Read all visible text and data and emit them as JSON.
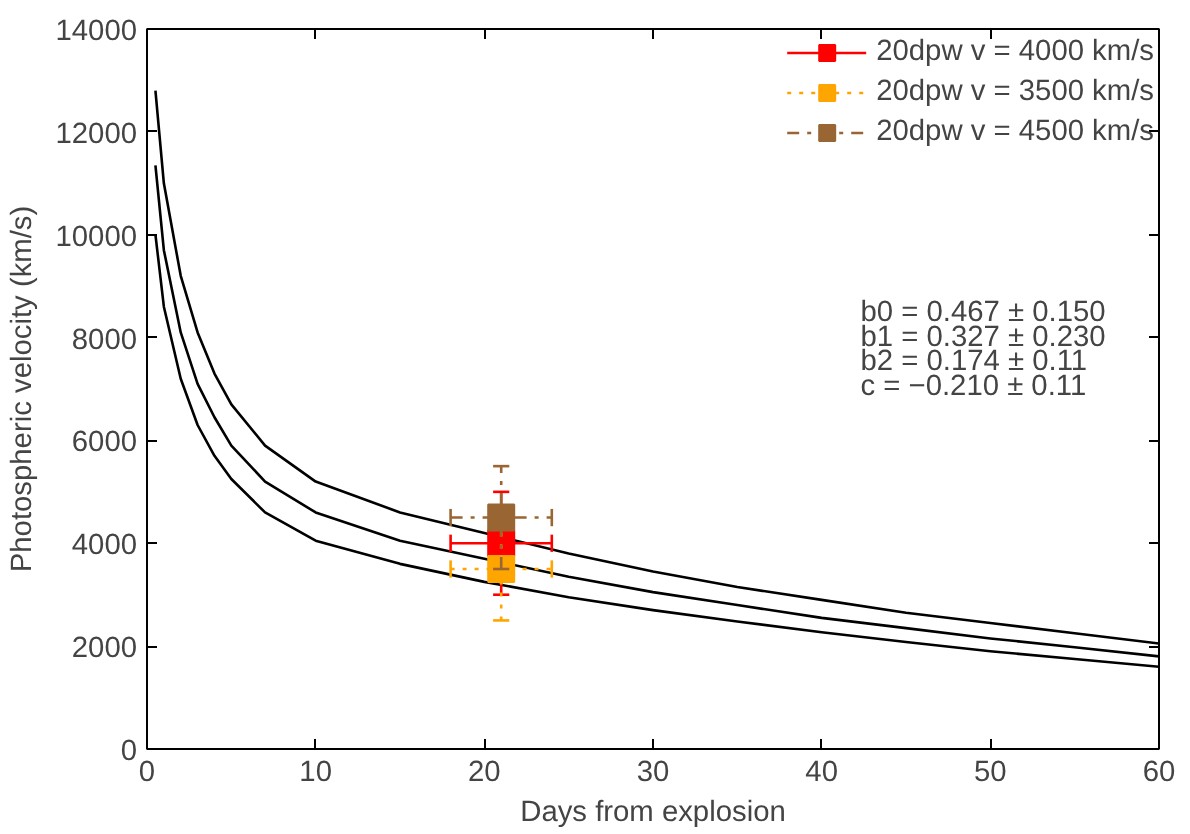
{
  "chart_data": {
    "type": "scatter",
    "xlabel": "Days from explosion",
    "ylabel": "Photospheric velocity (km/s)",
    "xlim": [
      0,
      60
    ],
    "ylim": [
      0,
      14000
    ],
    "xticks": [
      0,
      10,
      20,
      30,
      40,
      50,
      60
    ],
    "yticks": [
      0,
      2000,
      4000,
      6000,
      8000,
      10000,
      12000,
      14000
    ],
    "grid": false,
    "legend": "top right",
    "annotations": [
      "b0 = 0.467 ± 0.150",
      "b1 = 0.327 ± 0.230",
      "b2 = 0.174 ± 0.11",
      "c = −0.210 ± 0.11"
    ],
    "series": [
      {
        "type": "line",
        "color": "#000000",
        "x": [
          0.5,
          1,
          2,
          3,
          4,
          5,
          7,
          10,
          15,
          20,
          25,
          30,
          35,
          40,
          45,
          50,
          55,
          60
        ],
        "values": [
          12800,
          11000,
          9200,
          8100,
          7300,
          6700,
          5900,
          5200,
          4600,
          4200,
          3800,
          3450,
          3150,
          2900,
          2650,
          2450,
          2250,
          2050
        ]
      },
      {
        "type": "line",
        "color": "#000000",
        "x": [
          0.5,
          1,
          2,
          3,
          4,
          5,
          7,
          10,
          15,
          20,
          25,
          30,
          35,
          40,
          45,
          50,
          55,
          60
        ],
        "values": [
          11350,
          9700,
          8100,
          7100,
          6450,
          5900,
          5200,
          4600,
          4050,
          3700,
          3350,
          3050,
          2800,
          2550,
          2350,
          2150,
          1980,
          1800
        ]
      },
      {
        "type": "line",
        "color": "#000000",
        "x": [
          0.5,
          1,
          2,
          3,
          4,
          5,
          7,
          10,
          15,
          20,
          25,
          30,
          35,
          40,
          45,
          50,
          55,
          60
        ],
        "values": [
          10000,
          8600,
          7200,
          6300,
          5700,
          5250,
          4600,
          4050,
          3600,
          3250,
          2950,
          2700,
          2480,
          2270,
          2080,
          1900,
          1750,
          1600
        ]
      },
      {
        "name": "20dpw v = 4000 km/s",
        "color": "#ff0000",
        "marker": "square",
        "line_style": "solid",
        "x": [
          21
        ],
        "values": [
          4000
        ],
        "errors": [
          1000
        ],
        "xerrors": [
          3
        ]
      },
      {
        "name": "20dpw v = 3500 km/s",
        "color": "#ffa500",
        "marker": "square",
        "line_style": "dotted",
        "x": [
          21
        ],
        "values": [
          3500
        ],
        "errors": [
          1000
        ],
        "xerrors": [
          3
        ]
      },
      {
        "name": "20dpw v = 4500 km/s",
        "color": "#996633",
        "marker": "square",
        "line_style": "dashdot",
        "x": [
          21
        ],
        "values": [
          4500
        ],
        "errors": [
          1000
        ],
        "xerrors": [
          3
        ]
      }
    ]
  }
}
